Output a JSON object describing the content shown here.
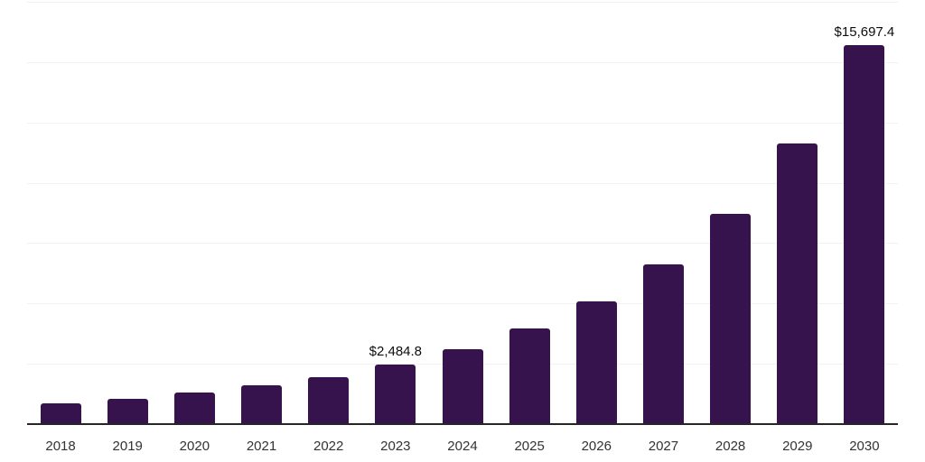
{
  "chart_data": {
    "type": "bar",
    "title": "",
    "xlabel": "",
    "ylabel": "",
    "categories": [
      "2018",
      "2019",
      "2020",
      "2021",
      "2022",
      "2023",
      "2024",
      "2025",
      "2026",
      "2027",
      "2028",
      "2029",
      "2030"
    ],
    "values": [
      860,
      1050,
      1300,
      1600,
      1955,
      2484.8,
      3115,
      3955,
      5085,
      6630,
      8700,
      11630,
      15697.4
    ],
    "labeled_points": [
      {
        "category": "2023",
        "label": "$2,484.8"
      },
      {
        "category": "2030",
        "label": "$15,697.4"
      }
    ],
    "ylim": [
      0,
      17500
    ],
    "gridline_interval": 2500,
    "grid": "horizontal",
    "legend": "none",
    "colors": {
      "bar": "#36134D",
      "gridline": "#f2f2f2",
      "axis_line": "#262626",
      "tick_label": "#333333",
      "data_label": "#0d0d0d",
      "background": "#ffffff"
    }
  }
}
